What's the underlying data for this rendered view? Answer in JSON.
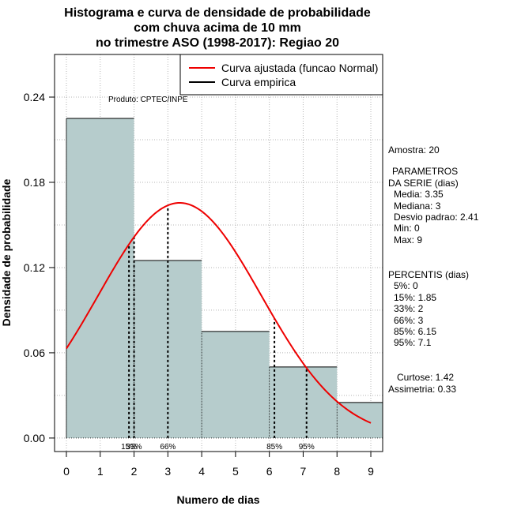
{
  "chart_data": {
    "type": "bar",
    "title_lines": [
      "Histograma e curva de densidade de probabilidade",
      "com chuva acima de 10 mm",
      "no trimestre ASO (1998-2017): Regiao 20"
    ],
    "xlabel": "Numero de dias",
    "ylabel": "Densidade de probabilidade",
    "xlim": [
      -0.35,
      9.35
    ],
    "ylim": [
      -0.0095,
      0.27
    ],
    "x_ticks": [
      "0",
      "1",
      "2",
      "3",
      "4",
      "5",
      "6",
      "7",
      "8",
      "9"
    ],
    "y_ticks": [
      "0.00",
      "0.06",
      "0.12",
      "0.18",
      "0.24"
    ],
    "grid": true,
    "bars": [
      {
        "x0": 0,
        "x1": 2,
        "value": 0.225
      },
      {
        "x0": 2,
        "x1": 4,
        "value": 0.125
      },
      {
        "x0": 4,
        "x1": 6,
        "value": 0.075
      },
      {
        "x0": 6,
        "x1": 8,
        "value": 0.05
      },
      {
        "x0": 8,
        "x1": 9.35,
        "value": 0.025
      }
    ],
    "fitted_curve": {
      "distribution": "Normal",
      "mean": 3.35,
      "sd": 2.41,
      "x_range": [
        0,
        9
      ],
      "color": "#ee0000"
    },
    "percentile_lines": [
      {
        "x": 1.85,
        "label": "15%"
      },
      {
        "x": 2,
        "label": "33%"
      },
      {
        "x": 3,
        "label": "66%"
      },
      {
        "x": 6.15,
        "label": "85%"
      },
      {
        "x": 7.1,
        "label": "95%"
      }
    ],
    "legend": {
      "placement": "top-right",
      "items": [
        {
          "label": "Curva ajustada (funcao Normal)",
          "color": "#ee0000"
        },
        {
          "label": "Curva empirica",
          "color": "#000000"
        }
      ]
    },
    "credit": "Produto: CPTEC/INPE",
    "bar_color": "#b6cccc"
  },
  "side_panel": {
    "sample": "Amostra: 20",
    "params_title_1": "PARAMETROS",
    "params_title_2": "DA SERIE (dias)",
    "params": [
      "Media: 3.35",
      "Mediana: 3",
      "Desvio padrao: 2.41",
      "Min: 0",
      "Max: 9"
    ],
    "percentis_title": "PERCENTIS (dias)",
    "percentis": [
      "5%: 0",
      "15%: 1.85",
      "33%: 2",
      "66%: 3",
      "85%: 6.15",
      "95%: 7.1"
    ],
    "curtose": "Curtose: 1.42",
    "assimetria": "Assimetria: 0.33"
  }
}
